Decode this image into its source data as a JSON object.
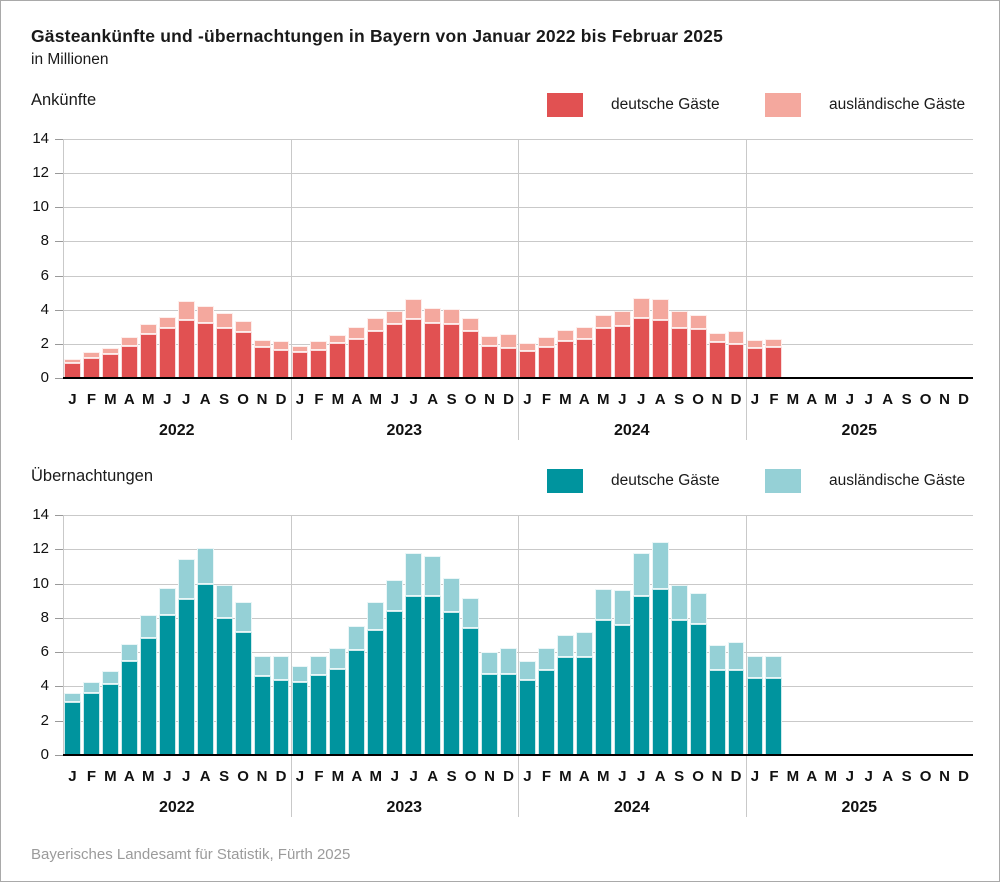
{
  "title": "Gästeankünfte und -übernachtungen in Bayern von Januar 2022 bis Februar 2025",
  "subtitle": "in Millionen",
  "source": "Bayerisches Landesamt für Statistik, Fürth 2025",
  "colors": {
    "grid": "#c9c9c9",
    "axis": "#000000",
    "tick": "#999999",
    "text": "#1a1a1a",
    "source_text": "#9b9b9b",
    "arrivals_domestic": "#e15152",
    "arrivals_foreign": "#f4a89e",
    "nights_domestic": "#00949e",
    "nights_foreign": "#95d0d6"
  },
  "chart_data": [
    {
      "type": "bar",
      "stacked": true,
      "title": "Ankünfte",
      "ylabel": "",
      "xlabel": "",
      "ylim": [
        0,
        14
      ],
      "yticks": [
        0,
        2,
        4,
        6,
        8,
        10,
        12,
        14
      ],
      "grid": true,
      "legend_position": "top-right",
      "years": [
        "2022",
        "2023",
        "2024",
        "2025"
      ],
      "months": [
        "J",
        "F",
        "M",
        "A",
        "M",
        "J",
        "J",
        "A",
        "S",
        "O",
        "N",
        "D"
      ],
      "series": [
        {
          "name": "deutsche Gäste",
          "color": "#e15152",
          "values": [
            0.9,
            1.15,
            1.4,
            1.9,
            2.6,
            2.9,
            3.4,
            3.25,
            2.95,
            2.7,
            1.8,
            1.65,
            1.55,
            1.65,
            2.05,
            2.3,
            2.75,
            3.15,
            3.45,
            3.2,
            3.15,
            2.75,
            1.85,
            1.75,
            1.6,
            1.8,
            2.15,
            2.3,
            2.9,
            3.05,
            3.5,
            3.4,
            2.9,
            2.85,
            2.1,
            2.0,
            1.75,
            1.8
          ]
        },
        {
          "name": "ausländische Gäste",
          "color": "#f4a89e",
          "values": [
            0.2,
            0.35,
            0.35,
            0.5,
            0.55,
            0.65,
            1.1,
            0.95,
            0.85,
            0.65,
            0.45,
            0.5,
            0.35,
            0.5,
            0.45,
            0.7,
            0.75,
            0.8,
            1.2,
            0.9,
            0.9,
            0.75,
            0.6,
            0.85,
            0.45,
            0.6,
            0.65,
            0.7,
            0.8,
            0.85,
            1.2,
            1.25,
            1.0,
            0.85,
            0.55,
            0.75,
            0.5,
            0.5
          ]
        }
      ]
    },
    {
      "type": "bar",
      "stacked": true,
      "title": "Übernachtungen",
      "ylabel": "",
      "xlabel": "",
      "ylim": [
        0,
        14
      ],
      "yticks": [
        0,
        2,
        4,
        6,
        8,
        10,
        12,
        14
      ],
      "grid": true,
      "legend_position": "top-right",
      "years": [
        "2022",
        "2023",
        "2024",
        "2025"
      ],
      "months": [
        "J",
        "F",
        "M",
        "A",
        "M",
        "J",
        "J",
        "A",
        "S",
        "O",
        "N",
        "D"
      ],
      "series": [
        {
          "name": "deutsche Gäste",
          "color": "#00949e",
          "values": [
            3.1,
            3.6,
            4.15,
            5.5,
            6.85,
            8.15,
            9.1,
            9.95,
            8.0,
            7.2,
            4.6,
            4.4,
            4.25,
            4.65,
            5.0,
            6.1,
            7.3,
            8.4,
            9.3,
            9.3,
            8.35,
            7.4,
            4.7,
            4.75,
            4.4,
            4.95,
            5.7,
            5.7,
            7.9,
            7.6,
            9.3,
            9.7,
            7.85,
            7.65,
            4.95,
            4.95,
            4.5,
            4.5
          ]
        },
        {
          "name": "ausländische Gäste",
          "color": "#95d0d6",
          "values": [
            0.5,
            0.65,
            0.75,
            1.0,
            1.3,
            1.6,
            2.35,
            2.15,
            1.9,
            1.7,
            1.15,
            1.35,
            0.95,
            1.15,
            1.25,
            1.45,
            1.65,
            1.8,
            2.5,
            2.3,
            2.0,
            1.75,
            1.3,
            1.5,
            1.1,
            1.3,
            1.3,
            1.5,
            1.8,
            2.0,
            2.5,
            2.7,
            2.05,
            1.8,
            1.45,
            1.65,
            1.25,
            1.3
          ]
        }
      ]
    }
  ]
}
